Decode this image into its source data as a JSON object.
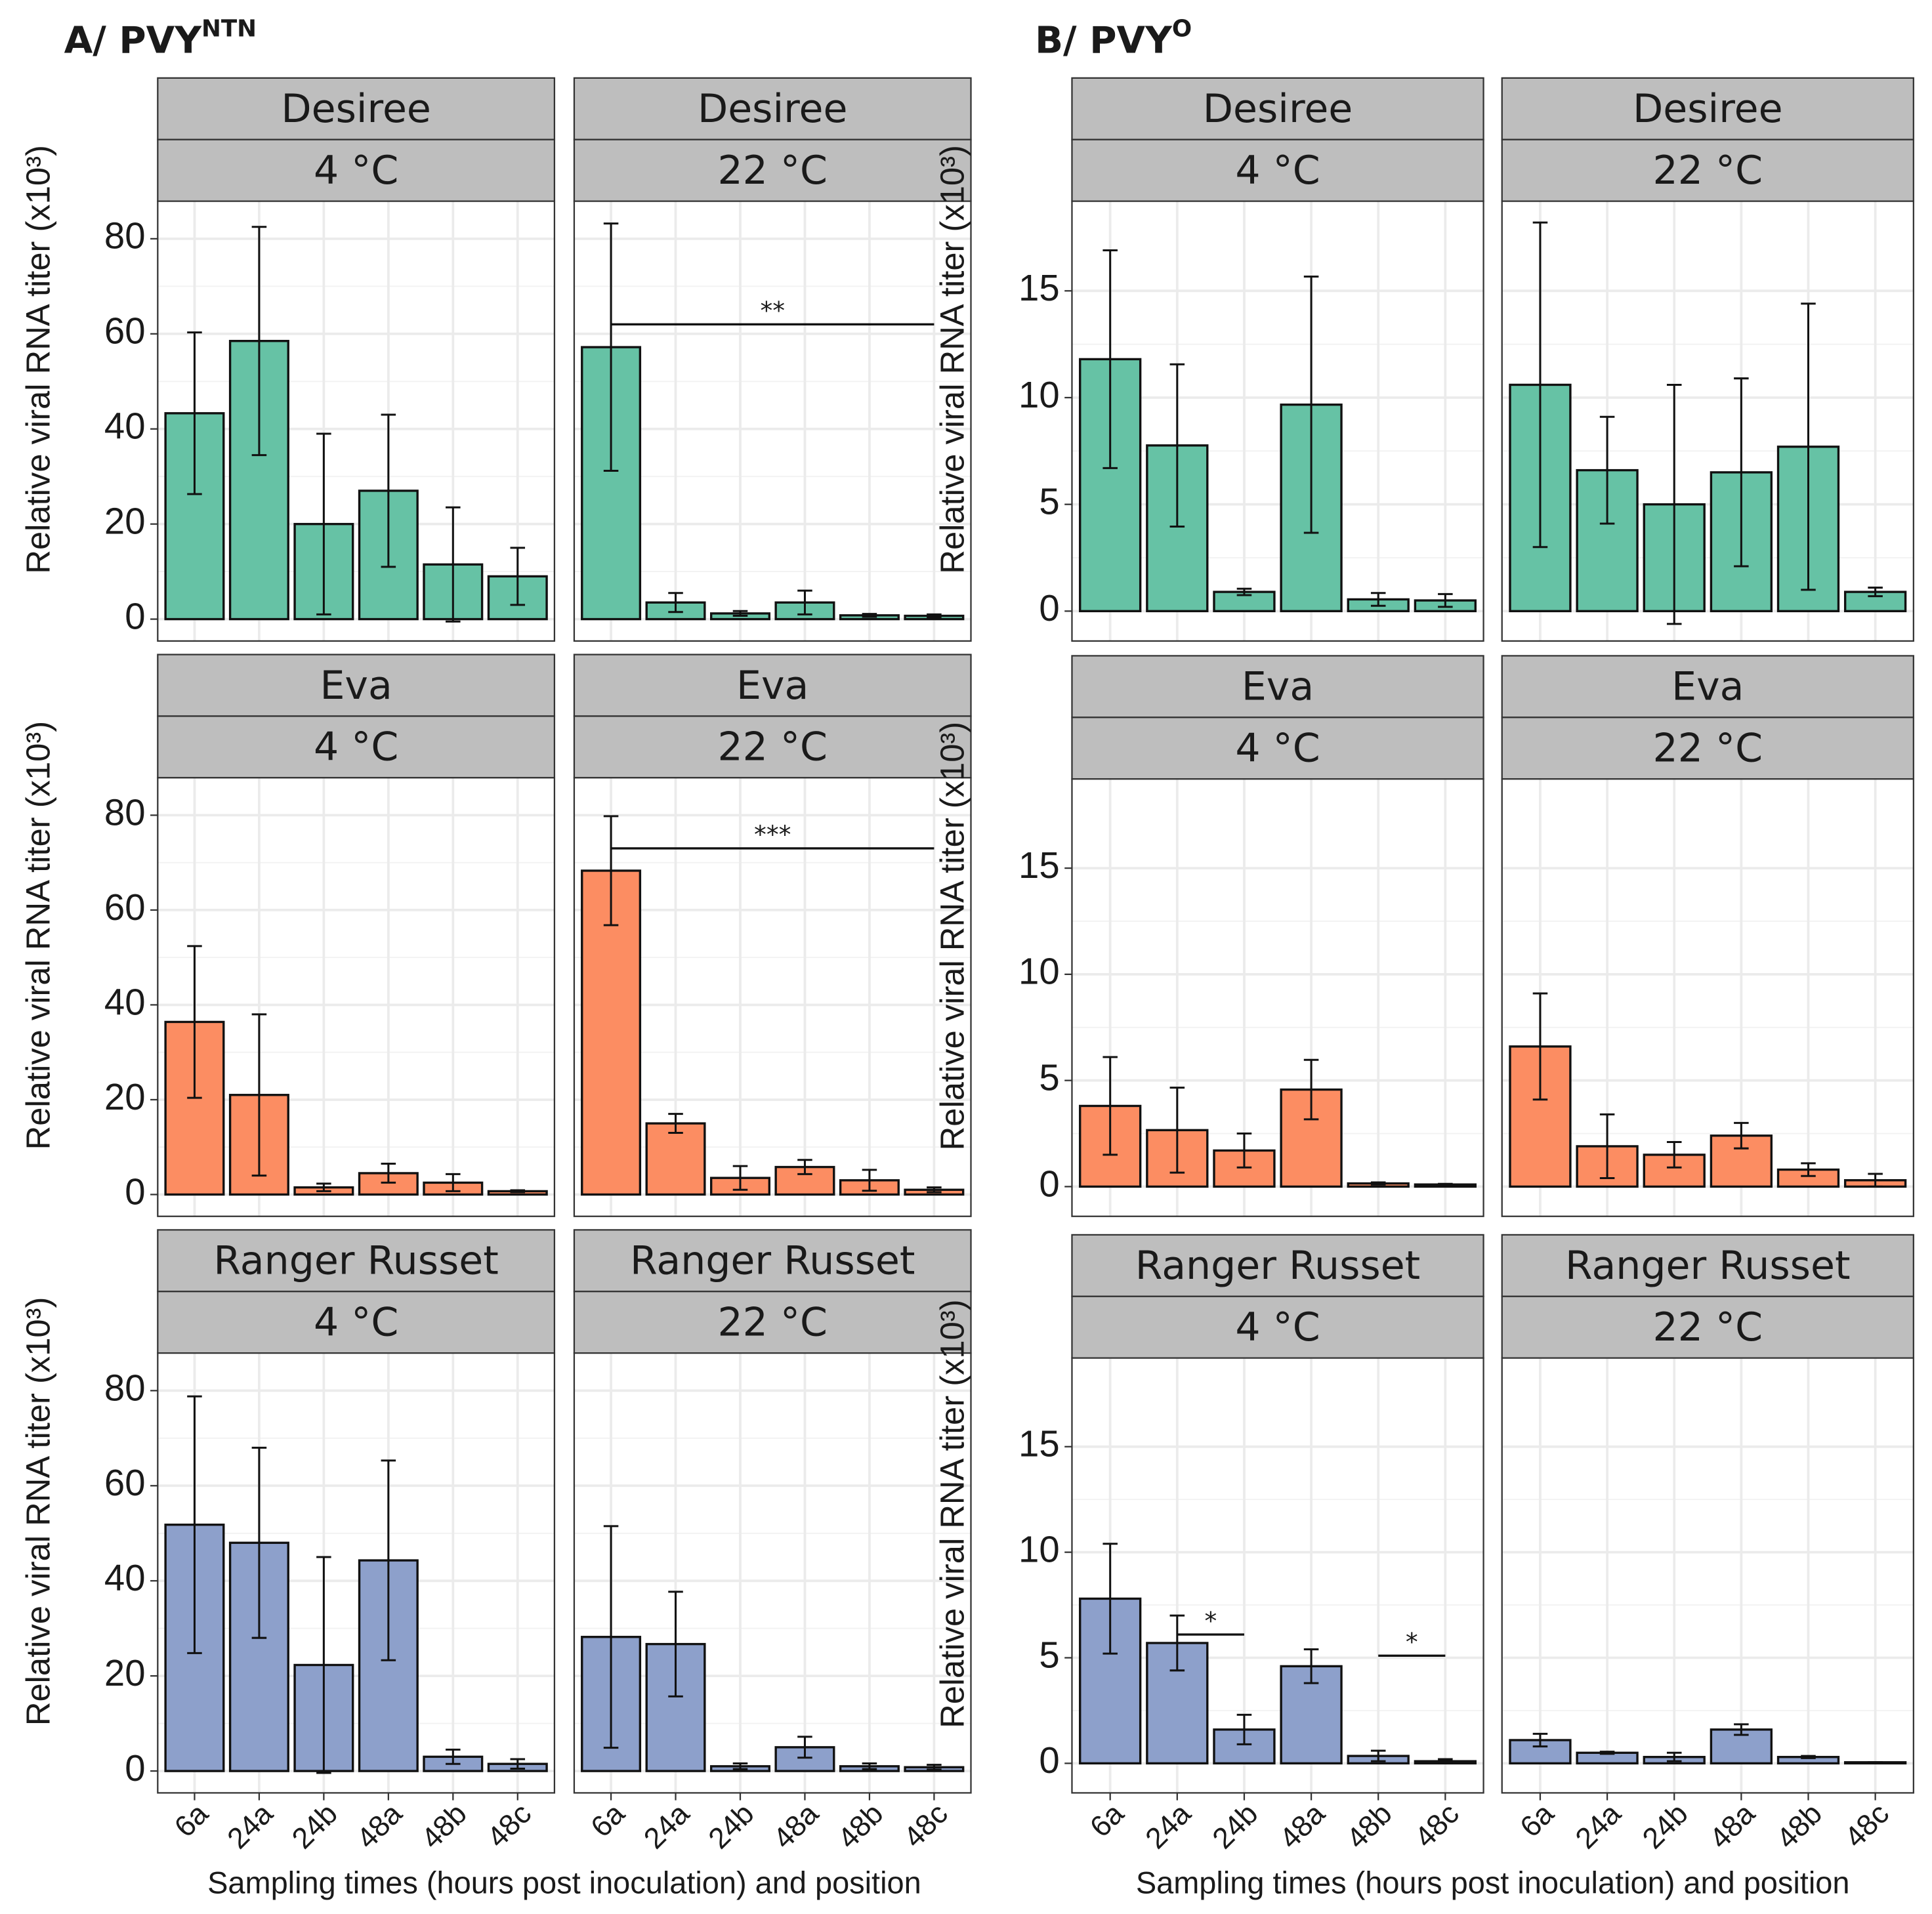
{
  "groups": [
    {
      "title": "A/ PVY",
      "title_sup": "NTN",
      "x_label": "Sampling times (hours post inoculation) and position"
    },
    {
      "title": "B/ PVY",
      "title_sup": "O",
      "x_label": "Sampling times (hours post inoculation) and position"
    }
  ],
  "chart_data": [
    {
      "type": "bar",
      "strips": [
        "Desiree",
        "4 °C"
      ],
      "y_label": "Relative viral RNA titer (x10³)",
      "tick_labels": true,
      "x_tick_labels": false,
      "categories": [
        "6a",
        "24a",
        "24b",
        "48a",
        "48b",
        "48c"
      ],
      "values": [
        43.3,
        58.5,
        20,
        27,
        11.5,
        9
      ],
      "errors": [
        17,
        24,
        19,
        16,
        12,
        6
      ],
      "color": "#66c2a5",
      "ylim": [
        -4.6,
        87.9
      ],
      "yticks": [
        0,
        20,
        40,
        60,
        80
      ],
      "grid": true,
      "annotations": []
    },
    {
      "type": "bar",
      "strips": [
        "Desiree",
        "22 °C"
      ],
      "tick_labels": false,
      "x_tick_labels": false,
      "categories": [
        "6a",
        "24a",
        "24b",
        "48a",
        "48b",
        "48c"
      ],
      "values": [
        57.2,
        3.5,
        1.2,
        3.5,
        0.8,
        0.7
      ],
      "errors": [
        26,
        2,
        0.5,
        2.5,
        0.3,
        0.3
      ],
      "color": "#66c2a5",
      "ylim": [
        -4.6,
        87.9
      ],
      "yticks": [
        0,
        20,
        40,
        60,
        80
      ],
      "grid": true,
      "annotations": [
        {
          "text": "**",
          "from": "6a",
          "to": "48c",
          "y": 62
        }
      ]
    },
    {
      "type": "bar",
      "strips": [
        "Eva",
        "4 °C"
      ],
      "y_label": "Relative viral RNA titer (x10³)",
      "tick_labels": true,
      "x_tick_labels": false,
      "categories": [
        "6a",
        "24a",
        "24b",
        "48a",
        "48b",
        "48c"
      ],
      "values": [
        36.4,
        21,
        1.5,
        4.5,
        2.5,
        0.7
      ],
      "errors": [
        16,
        17,
        0.8,
        2,
        1.8,
        0.2
      ],
      "color": "#fc8d62",
      "ylim": [
        -4.6,
        87.9
      ],
      "yticks": [
        0,
        20,
        40,
        60,
        80
      ],
      "grid": true,
      "annotations": []
    },
    {
      "type": "bar",
      "strips": [
        "Eva",
        "22 °C"
      ],
      "tick_labels": false,
      "x_tick_labels": false,
      "categories": [
        "6a",
        "24a",
        "24b",
        "48a",
        "48b",
        "48c"
      ],
      "values": [
        68.3,
        15,
        3.5,
        5.8,
        3,
        1
      ],
      "errors": [
        11.5,
        2,
        2.5,
        1.5,
        2.2,
        0.5
      ],
      "color": "#fc8d62",
      "ylim": [
        -4.6,
        87.9
      ],
      "yticks": [
        0,
        20,
        40,
        60,
        80
      ],
      "grid": true,
      "annotations": [
        {
          "text": "***",
          "from": "6a",
          "to": "48c",
          "y": 73
        }
      ]
    },
    {
      "type": "bar",
      "strips": [
        "Ranger Russet",
        "4 °C"
      ],
      "y_label": "Relative viral RNA titer (x10³)",
      "tick_labels": true,
      "x_tick_labels": true,
      "categories": [
        "6a",
        "24a",
        "24b",
        "48a",
        "48b",
        "48c"
      ],
      "values": [
        51.8,
        48,
        22.3,
        44.3,
        3,
        1.5
      ],
      "errors": [
        27,
        20,
        22.7,
        21,
        1.5,
        1
      ],
      "color": "#8da0cb",
      "ylim": [
        -4.6,
        87.9
      ],
      "yticks": [
        0,
        20,
        40,
        60,
        80
      ],
      "grid": true,
      "annotations": []
    },
    {
      "type": "bar",
      "strips": [
        "Ranger Russet",
        "22 °C"
      ],
      "tick_labels": false,
      "x_tick_labels": true,
      "categories": [
        "6a",
        "24a",
        "24b",
        "48a",
        "48b",
        "48c"
      ],
      "values": [
        28.2,
        26.7,
        1,
        5,
        1,
        0.8
      ],
      "errors": [
        23.3,
        11,
        0.6,
        2.2,
        0.6,
        0.5
      ],
      "color": "#8da0cb",
      "ylim": [
        -4.6,
        87.9
      ],
      "yticks": [
        0,
        20,
        40,
        60,
        80
      ],
      "grid": true,
      "annotations": []
    },
    {
      "type": "bar",
      "strips": [
        "Desiree",
        "4 °C"
      ],
      "y_label": "Relative viral RNA titer (x10³)",
      "tick_labels": true,
      "x_tick_labels": false,
      "categories": [
        "6a",
        "24a",
        "24b",
        "48a",
        "48b",
        "48c"
      ],
      "values": [
        11.8,
        7.76,
        0.9,
        9.67,
        0.55,
        0.5
      ],
      "errors": [
        5.1,
        3.8,
        0.15,
        6,
        0.3,
        0.3
      ],
      "color": "#66c2a5",
      "ylim": [
        -1.4,
        19.2
      ],
      "yticks": [
        0,
        5,
        10,
        15
      ],
      "grid": true,
      "annotations": []
    },
    {
      "type": "bar",
      "strips": [
        "Desiree",
        "22 °C"
      ],
      "tick_labels": false,
      "x_tick_labels": false,
      "categories": [
        "6a",
        "24a",
        "24b",
        "48a",
        "48b",
        "48c"
      ],
      "values": [
        10.6,
        6.6,
        5,
        6.5,
        7.7,
        0.9
      ],
      "errors": [
        7.6,
        2.5,
        5.6,
        4.4,
        6.7,
        0.2
      ],
      "color": "#66c2a5",
      "ylim": [
        -1.4,
        19.2
      ],
      "yticks": [
        0,
        5,
        10,
        15
      ],
      "grid": true,
      "annotations": []
    },
    {
      "type": "bar",
      "strips": [
        "Eva",
        "4 °C"
      ],
      "y_label": "Relative viral RNA titer (x10³)",
      "tick_labels": true,
      "x_tick_labels": false,
      "categories": [
        "6a",
        "24a",
        "24b",
        "48a",
        "48b",
        "48c"
      ],
      "values": [
        3.8,
        2.66,
        1.7,
        4.57,
        0.15,
        0.1
      ],
      "errors": [
        2.3,
        2,
        0.8,
        1.4,
        0.05,
        0.03
      ],
      "color": "#fc8d62",
      "ylim": [
        -1.4,
        19.2
      ],
      "yticks": [
        0,
        5,
        10,
        15
      ],
      "grid": true,
      "annotations": []
    },
    {
      "type": "bar",
      "strips": [
        "Eva",
        "22 °C"
      ],
      "tick_labels": false,
      "x_tick_labels": false,
      "categories": [
        "6a",
        "24a",
        "24b",
        "48a",
        "48b",
        "48c"
      ],
      "values": [
        6.6,
        1.9,
        1.5,
        2.4,
        0.8,
        0.3
      ],
      "errors": [
        2.5,
        1.5,
        0.6,
        0.6,
        0.3,
        0.3
      ],
      "color": "#fc8d62",
      "ylim": [
        -1.4,
        19.2
      ],
      "yticks": [
        0,
        5,
        10,
        15
      ],
      "grid": true,
      "annotations": []
    },
    {
      "type": "bar",
      "strips": [
        "Ranger Russet",
        "4 °C"
      ],
      "y_label": "Relative viral RNA titer (x10³)",
      "tick_labels": true,
      "x_tick_labels": true,
      "categories": [
        "6a",
        "24a",
        "24b",
        "48a",
        "48b",
        "48c"
      ],
      "values": [
        7.8,
        5.7,
        1.6,
        4.6,
        0.35,
        0.1
      ],
      "errors": [
        2.6,
        1.3,
        0.7,
        0.8,
        0.25,
        0.1
      ],
      "color": "#8da0cb",
      "ylim": [
        -1.4,
        19.2
      ],
      "yticks": [
        0,
        5,
        10,
        15
      ],
      "grid": true,
      "annotations": [
        {
          "text": "*",
          "from": "24a",
          "to": "24b",
          "y": 6.1
        },
        {
          "text": "*",
          "from": "48b",
          "to": "48c",
          "y": 5.1
        }
      ]
    },
    {
      "type": "bar",
      "strips": [
        "Ranger Russet",
        "22 °C"
      ],
      "tick_labels": false,
      "x_tick_labels": true,
      "categories": [
        "6a",
        "24a",
        "24b",
        "48a",
        "48b",
        "48c"
      ],
      "values": [
        1.1,
        0.5,
        0.3,
        1.6,
        0.3,
        0.05
      ],
      "errors": [
        0.3,
        0.05,
        0.2,
        0.25,
        0.05,
        0
      ],
      "color": "#8da0cb",
      "ylim": [
        -1.4,
        19.2
      ],
      "yticks": [
        0,
        5,
        10,
        15
      ],
      "grid": true,
      "annotations": []
    }
  ]
}
